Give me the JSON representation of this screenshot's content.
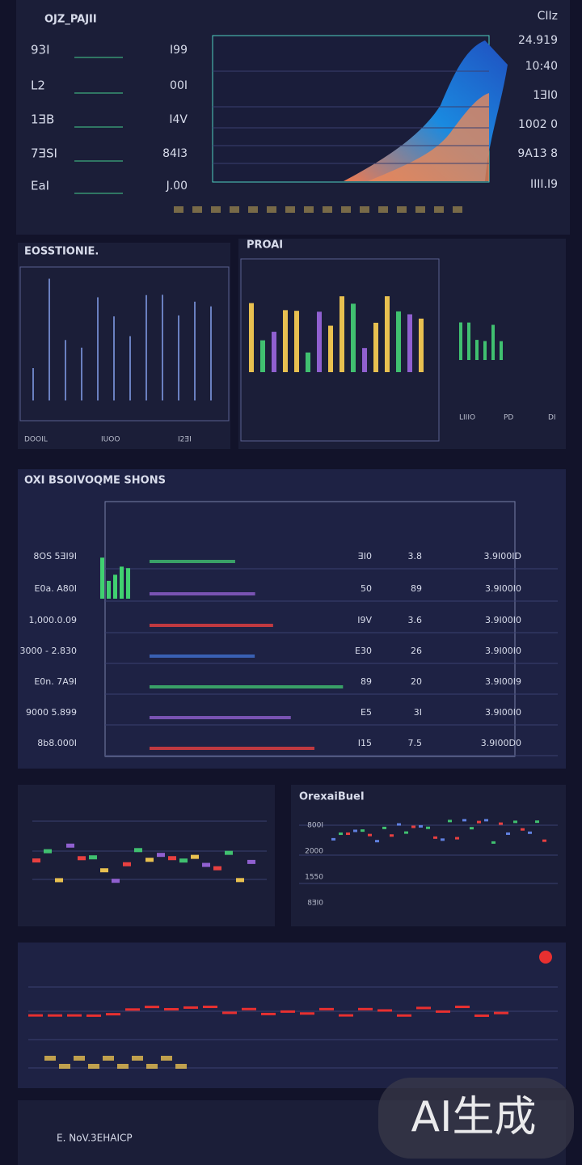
{
  "panel_top": {
    "title": "OJZ_PAJII",
    "row_labels": [
      "93I",
      "L2",
      "1ƎB",
      "7ƎSI",
      "EaI"
    ],
    "row_values": [
      "I99",
      "00I",
      "I4V",
      "84I3",
      "J.00"
    ],
    "right_labels": [
      "CIIz",
      "24.919",
      "10:40",
      "1ƎI0",
      "1002 0",
      "9A13 8",
      "IIII.I9"
    ]
  },
  "panel_left": {
    "title": "EOSSTIONIE.",
    "footer": [
      "DOOIL",
      "IUOO",
      "I2ƎI"
    ]
  },
  "panel_right": {
    "title": "PROAI",
    "footer": [
      "LIIIO",
      "PD",
      "DI"
    ]
  },
  "panel_table": {
    "title": "OXI BSOIVOQME SHONS",
    "rows": [
      [
        "8OS 5ƎI9I",
        "ƎI0",
        "3.8",
        "3.9I00ID"
      ],
      [
        "E0a. A80I",
        "50",
        "89",
        "3.9I00I0"
      ],
      [
        "1,000.0.09",
        "I9V",
        "3.6",
        "3.9I00I0"
      ],
      [
        "3000 - 2.830",
        "E30",
        "26",
        "3.9I00I0"
      ],
      [
        "E0n. 7A9I",
        "89",
        "20",
        "3.9I00I9"
      ],
      [
        "9000 5.899",
        "E5",
        "3I",
        "3.9I00I0"
      ],
      [
        "8b8.000I",
        "I15",
        "7.5",
        "3.9I00D0"
      ]
    ]
  },
  "panel_mid_right": {
    "title": "OrexaiBueI",
    "labels": [
      "800I",
      "2000",
      "1550",
      "8ƎI0"
    ]
  },
  "footer": {
    "text": "E. NoV.3EHAICP"
  },
  "watermark": "AI生成"
}
